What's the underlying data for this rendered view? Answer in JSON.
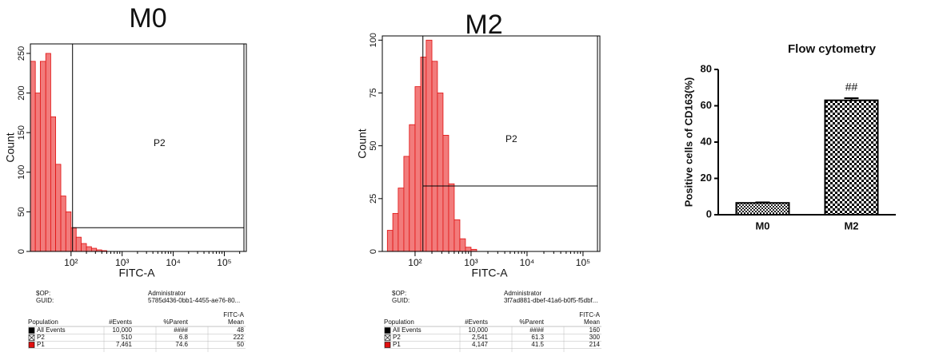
{
  "chart_data": [
    {
      "type": "histogram",
      "title": "M0",
      "x_label": "FITC-A",
      "y_label": "Count",
      "x_log": true,
      "xlim": [
        16,
        270000
      ],
      "xticks": [
        {
          "value": 100,
          "label": "10²"
        },
        {
          "value": 1000,
          "label": "10³"
        },
        {
          "value": 10000,
          "label": "10⁴"
        },
        {
          "value": 100000,
          "label": "10⁵"
        }
      ],
      "ylim": [
        0,
        262
      ],
      "yticks": [
        0,
        50,
        100,
        150,
        200,
        250
      ],
      "bins": [
        16,
        20,
        25,
        32,
        40,
        50,
        63,
        79,
        100,
        126,
        158,
        200,
        251,
        316,
        398,
        501,
        631
      ],
      "counts": [
        240,
        200,
        240,
        250,
        170,
        110,
        70,
        50,
        30,
        18,
        10,
        6,
        4,
        2,
        1,
        0
      ],
      "color": "#f27b7b",
      "edge_color": "#e01010",
      "gate": {
        "label": "P2",
        "x": 107,
        "y": 30
      },
      "info": [
        [
          "$OP:",
          "Administrator"
        ],
        [
          "GUID:",
          "5785d436-0bb1-4455-ae76-80..."
        ]
      ],
      "table": {
        "mean_group": "FITC-A",
        "columns": [
          "Population",
          "#Events",
          "%Parent",
          "Mean"
        ],
        "rows": [
          [
            "All Events",
            "10,000",
            "####",
            "48"
          ],
          [
            "P2",
            "510",
            "6.8",
            "222"
          ],
          [
            "P1",
            "7,461",
            "74.6",
            "50"
          ]
        ]
      }
    },
    {
      "type": "histogram",
      "title": "M2",
      "x_label": "FITC-A",
      "y_label": "Count",
      "x_log": true,
      "xlim": [
        26,
        200000
      ],
      "xticks": [
        {
          "value": 100,
          "label": "10²"
        },
        {
          "value": 1000,
          "label": "10³"
        },
        {
          "value": 10000,
          "label": "10⁴"
        },
        {
          "value": 100000,
          "label": "10⁵"
        }
      ],
      "ylim": [
        0,
        102
      ],
      "yticks": [
        0,
        25,
        50,
        75,
        100
      ],
      "bins": [
        32,
        40,
        50,
        63,
        79,
        100,
        126,
        158,
        200,
        251,
        316,
        398,
        501,
        631,
        794,
        1000,
        1259
      ],
      "counts": [
        10,
        18,
        30,
        45,
        60,
        78,
        92,
        100,
        90,
        75,
        55,
        32,
        15,
        6,
        2,
        1
      ],
      "color": "#f27b7b",
      "edge_color": "#e01010",
      "gate": {
        "label": "P2",
        "x": 138,
        "y": 31
      },
      "info": [
        [
          "$OP:",
          "Administrator"
        ],
        [
          "GUID:",
          "3f7ad881-dbef-41a6-b0f5-f5dbf..."
        ]
      ],
      "table": {
        "mean_group": "FITC-A",
        "columns": [
          "Population",
          "#Events",
          "%Parent",
          "Mean"
        ],
        "rows": [
          [
            "All Events",
            "10,000",
            "####",
            "160"
          ],
          [
            "P2",
            "2,541",
            "61.3",
            "300"
          ],
          [
            "P1",
            "4,147",
            "41.5",
            "214"
          ]
        ]
      }
    },
    {
      "type": "bar",
      "title": "Flow cytometry",
      "y_label": "Positive cells of CD163(%)",
      "categories": [
        "M0",
        "M2"
      ],
      "values": [
        6.5,
        63
      ],
      "errors": [
        0.3,
        1.2
      ],
      "annotations": [
        null,
        "##"
      ],
      "ylim": [
        0,
        80
      ],
      "yticks": [
        0,
        20,
        40,
        60,
        80
      ]
    }
  ]
}
